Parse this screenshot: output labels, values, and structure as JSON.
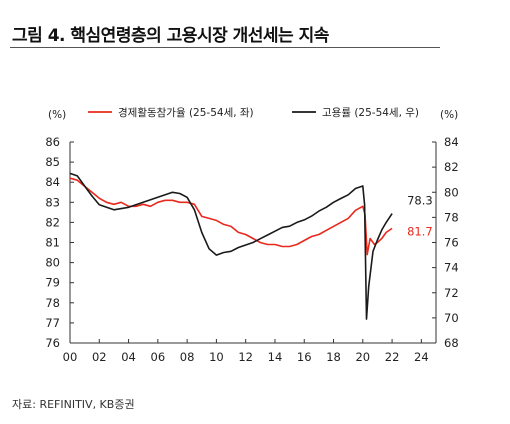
{
  "header": {
    "title": "그림 4. 핵심연령층의 고용시장 개선세는 지속"
  },
  "footer": {
    "source": "자료: REFINITIV, KB증권"
  },
  "chart_data": {
    "type": "line",
    "left_unit": "(%)",
    "right_unit": "(%)",
    "xlim": [
      0,
      25
    ],
    "x_ticks": [
      "00",
      "02",
      "04",
      "06",
      "08",
      "10",
      "12",
      "14",
      "16",
      "18",
      "20",
      "22",
      "24"
    ],
    "y_left": {
      "lim": [
        76,
        86
      ],
      "ticks": [
        "76",
        "77",
        "78",
        "79",
        "80",
        "81",
        "82",
        "83",
        "84",
        "85",
        "86"
      ]
    },
    "y_right": {
      "lim": [
        68,
        84
      ],
      "ticks": [
        "68",
        "70",
        "72",
        "74",
        "76",
        "78",
        "80",
        "82",
        "84"
      ]
    },
    "grid": false,
    "legend_placement": "top",
    "series": [
      {
        "name": "경제활동참가율 (25-54세, 좌)",
        "axis": "left",
        "color": "#e8291c",
        "points": [
          [
            0,
            84.2
          ],
          [
            0.5,
            84.1
          ],
          [
            1,
            83.8
          ],
          [
            1.5,
            83.5
          ],
          [
            2,
            83.2
          ],
          [
            2.5,
            83.0
          ],
          [
            3,
            82.9
          ],
          [
            3.5,
            83.0
          ],
          [
            4,
            82.8
          ],
          [
            4.5,
            82.8
          ],
          [
            5,
            82.9
          ],
          [
            5.5,
            82.8
          ],
          [
            6,
            83.0
          ],
          [
            6.5,
            83.1
          ],
          [
            7,
            83.1
          ],
          [
            7.5,
            83.0
          ],
          [
            8,
            83.0
          ],
          [
            8.5,
            82.9
          ],
          [
            9,
            82.3
          ],
          [
            9.5,
            82.2
          ],
          [
            10,
            82.1
          ],
          [
            10.5,
            81.9
          ],
          [
            11,
            81.8
          ],
          [
            11.5,
            81.5
          ],
          [
            12,
            81.4
          ],
          [
            12.5,
            81.2
          ],
          [
            13,
            81.0
          ],
          [
            13.5,
            80.9
          ],
          [
            14,
            80.9
          ],
          [
            14.5,
            80.8
          ],
          [
            15,
            80.8
          ],
          [
            15.5,
            80.9
          ],
          [
            16,
            81.1
          ],
          [
            16.5,
            81.3
          ],
          [
            17,
            81.4
          ],
          [
            17.5,
            81.6
          ],
          [
            18,
            81.8
          ],
          [
            18.5,
            82.0
          ],
          [
            19,
            82.2
          ],
          [
            19.5,
            82.6
          ],
          [
            20,
            82.8
          ],
          [
            20.15,
            82.4
          ],
          [
            20.3,
            80.4
          ],
          [
            20.5,
            81.2
          ],
          [
            20.8,
            80.9
          ],
          [
            21,
            81.0
          ],
          [
            21.3,
            81.2
          ],
          [
            21.6,
            81.5
          ],
          [
            22,
            81.7
          ]
        ]
      },
      {
        "name": "고용률 (25-54세, 우)",
        "axis": "right",
        "color": "#1a1a1a",
        "points": [
          [
            0,
            81.5
          ],
          [
            0.5,
            81.3
          ],
          [
            1,
            80.5
          ],
          [
            1.5,
            79.7
          ],
          [
            2,
            79.0
          ],
          [
            2.5,
            78.8
          ],
          [
            3,
            78.6
          ],
          [
            3.5,
            78.7
          ],
          [
            4,
            78.8
          ],
          [
            4.5,
            79.0
          ],
          [
            5,
            79.2
          ],
          [
            5.5,
            79.4
          ],
          [
            6,
            79.6
          ],
          [
            6.5,
            79.8
          ],
          [
            7,
            80.0
          ],
          [
            7.5,
            79.9
          ],
          [
            8,
            79.6
          ],
          [
            8.5,
            78.6
          ],
          [
            9,
            76.8
          ],
          [
            9.5,
            75.5
          ],
          [
            10,
            75.0
          ],
          [
            10.5,
            75.2
          ],
          [
            11,
            75.3
          ],
          [
            11.5,
            75.6
          ],
          [
            12,
            75.8
          ],
          [
            12.5,
            76.0
          ],
          [
            13,
            76.3
          ],
          [
            13.5,
            76.6
          ],
          [
            14,
            76.9
          ],
          [
            14.5,
            77.2
          ],
          [
            15,
            77.3
          ],
          [
            15.5,
            77.6
          ],
          [
            16,
            77.8
          ],
          [
            16.5,
            78.1
          ],
          [
            17,
            78.5
          ],
          [
            17.5,
            78.8
          ],
          [
            18,
            79.2
          ],
          [
            18.5,
            79.5
          ],
          [
            19,
            79.8
          ],
          [
            19.5,
            80.3
          ],
          [
            20,
            80.5
          ],
          [
            20.12,
            79.0
          ],
          [
            20.25,
            69.9
          ],
          [
            20.4,
            72.5
          ],
          [
            20.7,
            75.3
          ],
          [
            21,
            76.2
          ],
          [
            21.3,
            77.0
          ],
          [
            21.6,
            77.6
          ],
          [
            22,
            78.3
          ]
        ]
      }
    ],
    "annotations": [
      {
        "text": "78.3",
        "series": "고용률 (25-54세, 우)"
      },
      {
        "text": "81.7",
        "series": "경제활동참가율 (25-54세, 좌)"
      }
    ]
  }
}
